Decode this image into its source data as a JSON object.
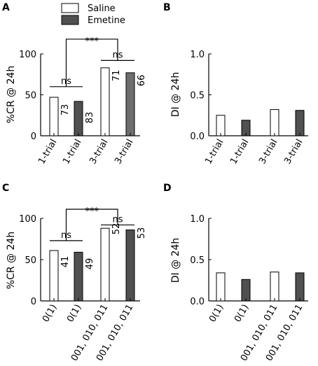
{
  "legend": {
    "entries": [
      {
        "label": "Saline",
        "color": "#ffffff"
      },
      {
        "label": "Emetine",
        "color": "#505050"
      }
    ]
  },
  "colors": {
    "saline": "#ffffff",
    "emetine": "#505050",
    "emetine_light": "#6e6e6e",
    "stroke": "#000000"
  },
  "chart_data": [
    {
      "panel": "A",
      "type": "bar",
      "ylabel": "%CR @ 24h",
      "ylim": [
        0,
        100
      ],
      "yticks": [
        "0",
        "50",
        "100"
      ],
      "categories": [
        "1-trial",
        "1-trial",
        "3-trial",
        "3-trial"
      ],
      "groups": [
        "Saline",
        "Emetine",
        "Saline",
        "Emetine"
      ],
      "values": [
        47,
        42,
        83,
        77
      ],
      "n_labels": [
        "73",
        "83",
        "71",
        "66"
      ],
      "annotations": [
        {
          "label": "ns",
          "from": 0,
          "to": 1,
          "y": 60
        },
        {
          "label": "ns",
          "from": 2,
          "to": 3,
          "y": 92
        },
        {
          "label": "***",
          "from_pair": 0,
          "to_pair": 1,
          "y": 118
        }
      ]
    },
    {
      "panel": "B",
      "type": "bar",
      "ylabel": "DI @ 24h",
      "ylim": [
        0,
        1.0
      ],
      "yticks": [
        "0.0",
        "0.5",
        "1.0"
      ],
      "categories": [
        "1-trial",
        "1-trial",
        "3-trial",
        "3-trial"
      ],
      "groups": [
        "Saline",
        "Emetine",
        "Saline",
        "Emetine"
      ],
      "values": [
        0.25,
        0.19,
        0.32,
        0.31
      ]
    },
    {
      "panel": "C",
      "type": "bar",
      "ylabel": "%CR @ 24h",
      "ylim": [
        0,
        100
      ],
      "yticks": [
        "0",
        "50",
        "100"
      ],
      "categories": [
        "0(1)",
        "0(1)",
        "001, 010, 011",
        "001, 010, 011"
      ],
      "groups": [
        "Saline",
        "Emetine",
        "Saline",
        "Emetine"
      ],
      "values": [
        61,
        59,
        88,
        86
      ],
      "n_labels": [
        "41",
        "49",
        "52",
        "53"
      ],
      "annotations": [
        {
          "label": "ns",
          "from": 0,
          "to": 1,
          "y": 73
        },
        {
          "label": "ns",
          "from": 2,
          "to": 3,
          "y": 92
        },
        {
          "label": "***",
          "from_pair": 0,
          "to_pair": 1,
          "y": 111
        }
      ]
    },
    {
      "panel": "D",
      "type": "bar",
      "ylabel": "DI @ 24h",
      "ylim": [
        0,
        1.0
      ],
      "yticks": [
        "0.0",
        "0.5",
        "1.0"
      ],
      "categories": [
        "0(1)",
        "0(1)",
        "001, 010, 011",
        "001, 010, 011"
      ],
      "groups": [
        "Saline",
        "Emetine",
        "Saline",
        "Emetine"
      ],
      "values": [
        0.34,
        0.26,
        0.35,
        0.34
      ]
    }
  ]
}
